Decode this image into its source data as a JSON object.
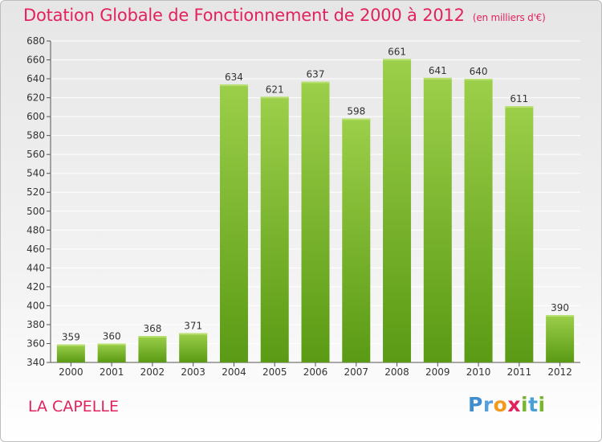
{
  "header": {
    "title": "Dotation Globale de Fonctionnement de 2000 à 2012",
    "unit": "(en milliers d'€)"
  },
  "footer": {
    "place": "LA CAPELLE",
    "logo_letters": [
      "P",
      "r",
      "o",
      "x",
      "i",
      "t",
      "i"
    ]
  },
  "colors": {
    "title": "#e2225c",
    "bar_top": "#9ccf4a",
    "bar_bottom": "#5a9a14",
    "grid": "#ffffff"
  },
  "chart_data": {
    "type": "bar",
    "title": "Dotation Globale de Fonctionnement de 2000 à 2012",
    "subtitle": "(en milliers d'€)",
    "xlabel": "",
    "ylabel": "",
    "categories": [
      "2000",
      "2001",
      "2002",
      "2003",
      "2004",
      "2005",
      "2006",
      "2007",
      "2008",
      "2009",
      "2010",
      "2011",
      "2012"
    ],
    "values": [
      359,
      360,
      368,
      371,
      634,
      621,
      637,
      598,
      661,
      641,
      640,
      611,
      390
    ],
    "ylim": [
      340,
      680
    ],
    "yticks": [
      340,
      360,
      380,
      400,
      420,
      440,
      460,
      480,
      500,
      520,
      540,
      560,
      580,
      600,
      620,
      640,
      660,
      680
    ],
    "grid": true,
    "legend": "none"
  }
}
